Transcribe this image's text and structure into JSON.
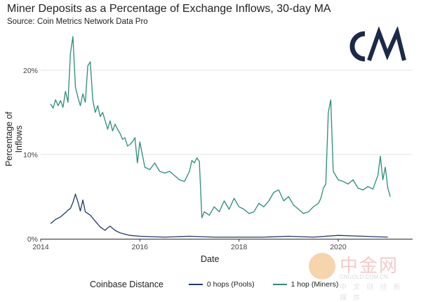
{
  "header": {
    "title": "Miner Deposits as a Percentage of Exchange Inflows, 30-day MA",
    "subtitle": "Source: Coin Metrics Network Data Pro"
  },
  "logo": {
    "text": "C/M",
    "color": "#1b2a49"
  },
  "watermark": {
    "main": "中金网",
    "url": "CNGOLD.COM.CN",
    "sub": "中 文 财 经 新 媒 体"
  },
  "legend": {
    "title": "Coinbase Distance",
    "items": [
      {
        "label": "0 hops (Pools)",
        "color": "#1f3a6b"
      },
      {
        "label": "1 hop (Miners)",
        "color": "#2a8c7a"
      }
    ]
  },
  "chart_data": {
    "type": "line",
    "title": "Miner Deposits as a Percentage of Exchange Inflows, 30-day MA",
    "xlabel": "Date",
    "ylabel": "Percentage of Inflows",
    "xlim": [
      2014.0,
      2021.5
    ],
    "ylim": [
      0,
      24.5
    ],
    "x_ticks": [
      "2014",
      "2016",
      "2018",
      "2020"
    ],
    "x_tick_values": [
      2014,
      2016,
      2018,
      2020
    ],
    "y_ticks": [
      "0%",
      "10%",
      "20%"
    ],
    "y_tick_values": [
      0,
      10,
      20
    ],
    "grid": true,
    "legend_position": "bottom",
    "series": [
      {
        "name": "0 hops (Pools)",
        "color": "#1f3a6b",
        "x": [
          2014.2,
          2014.3,
          2014.4,
          2014.5,
          2014.55,
          2014.6,
          2014.65,
          2014.7,
          2014.75,
          2014.8,
          2014.85,
          2014.9,
          2015.0,
          2015.1,
          2015.2,
          2015.3,
          2015.35,
          2015.4,
          2015.5,
          2015.6,
          2015.8,
          2016.0,
          2016.5,
          2017.0,
          2017.5,
          2018.0,
          2018.5,
          2019.0,
          2019.5,
          2020.0,
          2020.5,
          2021.0
        ],
        "y": [
          1.8,
          2.3,
          2.6,
          3.1,
          3.4,
          3.6,
          4.3,
          5.3,
          4.4,
          3.3,
          4.6,
          3.2,
          2.8,
          2.1,
          1.4,
          1.0,
          1.3,
          1.5,
          1.0,
          0.7,
          0.4,
          0.3,
          0.2,
          0.3,
          0.2,
          0.2,
          0.2,
          0.3,
          0.2,
          0.4,
          0.3,
          0.2
        ]
      },
      {
        "name": "1 hop (Miners)",
        "color": "#2a8c7a",
        "x": [
          2014.2,
          2014.25,
          2014.3,
          2014.35,
          2014.4,
          2014.45,
          2014.5,
          2014.55,
          2014.6,
          2014.65,
          2014.7,
          2014.75,
          2014.8,
          2014.85,
          2014.9,
          2014.95,
          2015.0,
          2015.05,
          2015.1,
          2015.15,
          2015.2,
          2015.25,
          2015.3,
          2015.35,
          2015.4,
          2015.45,
          2015.5,
          2015.55,
          2015.6,
          2015.65,
          2015.7,
          2015.75,
          2015.8,
          2015.85,
          2015.9,
          2015.95,
          2016.0,
          2016.1,
          2016.2,
          2016.3,
          2016.4,
          2016.5,
          2016.6,
          2016.7,
          2016.8,
          2016.9,
          2017.0,
          2017.05,
          2017.1,
          2017.15,
          2017.2,
          2017.25,
          2017.3,
          2017.4,
          2017.5,
          2017.6,
          2017.7,
          2017.8,
          2017.9,
          2018.0,
          2018.1,
          2018.2,
          2018.3,
          2018.4,
          2018.5,
          2018.6,
          2018.7,
          2018.8,
          2018.9,
          2019.0,
          2019.1,
          2019.2,
          2019.3,
          2019.4,
          2019.5,
          2019.6,
          2019.65,
          2019.7,
          2019.75,
          2019.8,
          2019.85,
          2019.9,
          2020.0,
          2020.1,
          2020.2,
          2020.3,
          2020.4,
          2020.5,
          2020.6,
          2020.7,
          2020.8,
          2020.85,
          2020.9,
          2020.95,
          2021.0,
          2021.05
        ],
        "y": [
          16.0,
          15.5,
          16.5,
          15.8,
          16.4,
          15.6,
          17.5,
          16.2,
          22.0,
          24.0,
          18.0,
          16.8,
          15.8,
          17.2,
          16.2,
          20.5,
          21.0,
          16.5,
          15.0,
          15.8,
          14.5,
          15.0,
          14.0,
          13.0,
          14.0,
          12.8,
          13.6,
          13.0,
          12.5,
          11.8,
          12.0,
          11.0,
          11.2,
          11.5,
          12.0,
          9.0,
          11.5,
          8.5,
          8.2,
          9.0,
          8.0,
          7.8,
          8.0,
          7.5,
          7.0,
          6.8,
          8.0,
          9.3,
          9.0,
          9.6,
          9.2,
          2.5,
          3.2,
          2.8,
          3.8,
          3.2,
          4.5,
          3.5,
          4.8,
          3.8,
          3.5,
          3.0,
          3.2,
          4.2,
          3.8,
          4.5,
          5.5,
          5.8,
          4.5,
          5.0,
          4.0,
          3.5,
          3.0,
          3.2,
          3.8,
          4.2,
          4.8,
          6.0,
          6.5,
          15.0,
          16.5,
          8.0,
          7.0,
          6.8,
          6.5,
          7.0,
          6.0,
          5.8,
          6.2,
          5.9,
          7.5,
          9.8,
          7.0,
          8.5,
          6.0,
          5.0
        ]
      }
    ]
  }
}
